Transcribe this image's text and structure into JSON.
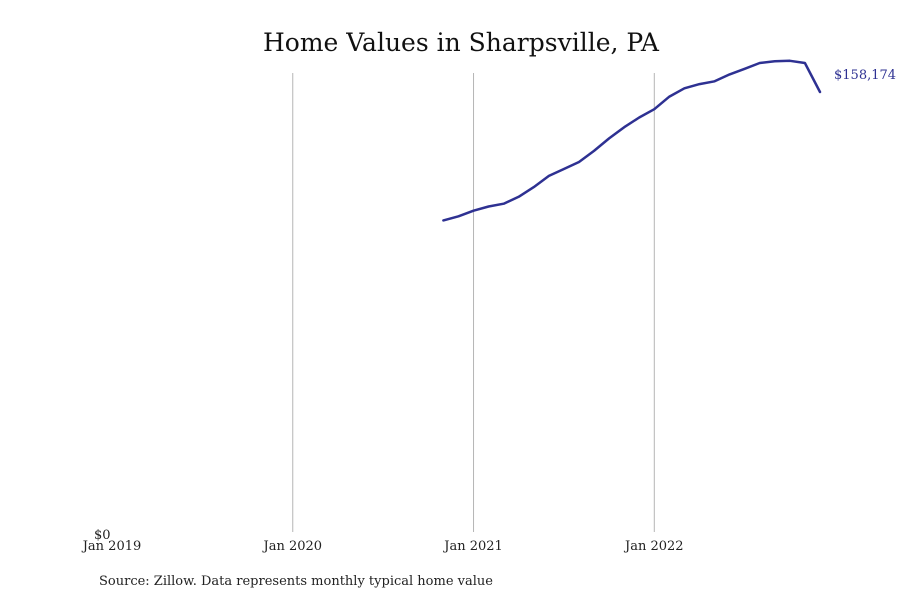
{
  "chart_data": {
    "type": "line",
    "title": "Home Values in Sharpsville, PA",
    "y_zero_label": "$0",
    "ylim": [
      0,
      165000
    ],
    "x_tick_labels": [
      "Jan 2019",
      "Jan 2020",
      "Jan 2021",
      "Jan 2022"
    ],
    "x_tick_dates": [
      "2019-01",
      "2020-01",
      "2021-01",
      "2022-01"
    ],
    "xlim": [
      "2019-01",
      "2022-12"
    ],
    "grid": "vertical",
    "end_label": "$158,174",
    "series": [
      {
        "color": "#2e3192",
        "x": [
          "2020-11",
          "2020-12",
          "2021-01",
          "2021-02",
          "2021-03",
          "2021-04",
          "2021-05",
          "2021-06",
          "2021-07",
          "2021-08",
          "2021-09",
          "2021-10",
          "2021-11",
          "2021-12",
          "2022-01",
          "2022-02",
          "2022-03",
          "2022-04",
          "2022-05",
          "2022-06",
          "2022-07",
          "2022-08",
          "2022-09",
          "2022-10",
          "2022-11",
          "2022-12"
        ],
        "values": [
          112000,
          113500,
          115500,
          117000,
          118000,
          120500,
          124000,
          128000,
          130500,
          133000,
          137000,
          141500,
          145500,
          149000,
          152000,
          156500,
          159500,
          161000,
          162000,
          164500,
          166500,
          168600,
          169200,
          169400,
          168600,
          158174
        ]
      }
    ]
  },
  "source_text": "Source: Zillow. Data represents monthly typical home value"
}
